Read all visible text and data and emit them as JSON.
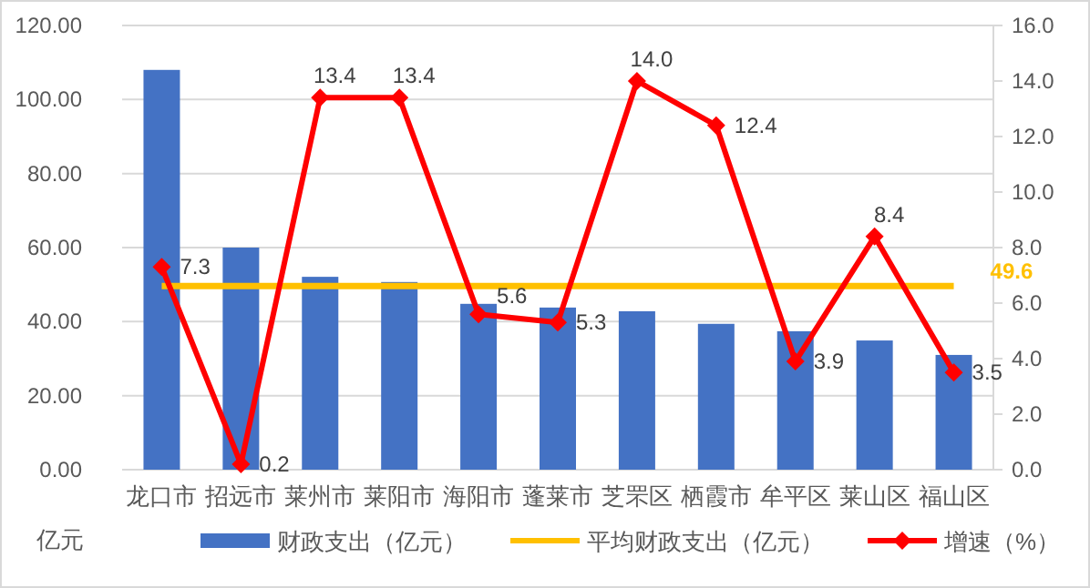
{
  "chart_data": {
    "type": "bar",
    "categories": [
      "龙口市",
      "招远市",
      "莱州市",
      "莱阳市",
      "海阳市",
      "蓬莱市",
      "芝罘区",
      "栖霞市",
      "牟平区",
      "莱山区",
      "福山区"
    ],
    "series": [
      {
        "name": "财政支出（亿元）",
        "color": "#4472c4",
        "values": [
          108,
          60,
          52.1,
          50.7,
          44.8,
          43.8,
          42.8,
          39.4,
          37.4,
          34.9,
          31.0
        ]
      },
      {
        "name": "平均财政支出（亿元）",
        "type": "line",
        "color": "#ffc000",
        "marker": "none",
        "values": [
          49.6,
          49.6,
          49.6,
          49.6,
          49.6,
          49.6,
          49.6,
          49.6,
          49.6,
          49.6,
          49.6
        ],
        "value_labels": [
          null,
          null,
          null,
          null,
          null,
          null,
          null,
          null,
          null,
          null,
          "49.6"
        ]
      },
      {
        "name": "增速（%）",
        "type": "line",
        "axis": "y2",
        "color": "#ff0000",
        "marker": "diamond",
        "values": [
          7.3,
          0.2,
          13.4,
          13.4,
          5.6,
          5.3,
          14.0,
          12.4,
          3.9,
          8.4,
          3.5
        ],
        "value_labels": [
          "7.3",
          "0.2",
          "13.4",
          "13.4",
          "5.6",
          "5.3",
          "14.0",
          "12.4",
          "3.9",
          "8.4",
          "3.5"
        ]
      }
    ],
    "ylabel": "亿元",
    "ylim": [
      0,
      120
    ],
    "yticks": [
      {
        "value": 0,
        "label": "0.00"
      },
      {
        "value": 20,
        "label": "20.00"
      },
      {
        "value": 40,
        "label": "40.00"
      },
      {
        "value": 60,
        "label": "60.00"
      },
      {
        "value": 80,
        "label": "80.00"
      },
      {
        "value": 100,
        "label": "100.00"
      },
      {
        "value": 120,
        "label": "120.00"
      }
    ],
    "y2lim": [
      0,
      16
    ],
    "y2ticks": [
      {
        "value": 0,
        "label": "0.0"
      },
      {
        "value": 2,
        "label": "2.0"
      },
      {
        "value": 4,
        "label": "4.0"
      },
      {
        "value": 6,
        "label": "6.0"
      },
      {
        "value": 8,
        "label": "8.0"
      },
      {
        "value": 10,
        "label": "10.0"
      },
      {
        "value": 12,
        "label": "12.0"
      },
      {
        "value": 14,
        "label": "14.0"
      },
      {
        "value": 16,
        "label": "16.0"
      }
    ],
    "grid": "y",
    "legend": "bottom"
  }
}
